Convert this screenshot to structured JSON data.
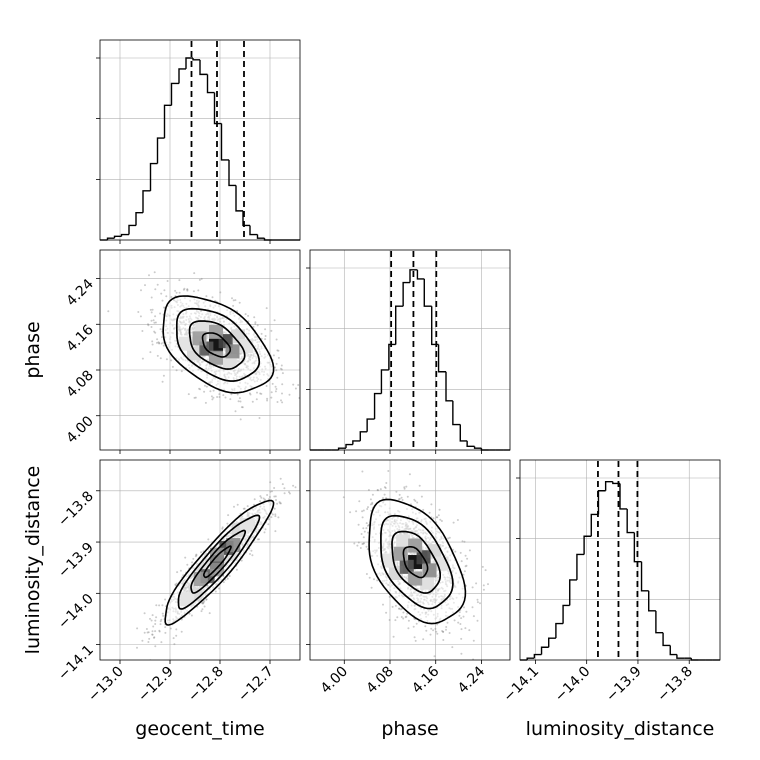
{
  "chart_data": {
    "type": "corner",
    "parameters": [
      "geocent_time",
      "phase",
      "luminosity_distance"
    ],
    "labels": {
      "geocent_time": "geocent_time",
      "phase": "phase",
      "luminosity_distance": "luminosity_distance"
    },
    "grid": true,
    "ranges": {
      "geocent_time": [
        -13.04,
        -12.64
      ],
      "phase": [
        3.94,
        4.29
      ],
      "luminosity_distance": [
        -14.13,
        -13.74
      ]
    },
    "ticks": {
      "geocent_time": [
        "−13.0",
        "−12.9",
        "−12.8",
        "−12.7"
      ],
      "phase": [
        "4.00",
        "4.08",
        "4.16",
        "4.24"
      ],
      "luminosity_distance": [
        "−14.1",
        "−14.0",
        "−13.9",
        "−13.8"
      ]
    },
    "tick_values": {
      "geocent_time": [
        -13.0,
        -12.9,
        -12.8,
        -12.7
      ],
      "phase": [
        4.0,
        4.08,
        4.16,
        4.24
      ],
      "luminosity_distance": [
        -14.1,
        -14.0,
        -13.9,
        -13.8
      ]
    },
    "histograms": {
      "geocent_time": {
        "quantiles": [
          -12.857,
          -12.806,
          -12.752
        ],
        "bin_edges": [
          -13.04,
          -13.025,
          -13.011,
          -12.997,
          -12.982,
          -12.968,
          -12.954,
          -12.939,
          -12.925,
          -12.911,
          -12.897,
          -12.882,
          -12.868,
          -12.854,
          -12.84,
          -12.825,
          -12.811,
          -12.797,
          -12.782,
          -12.768,
          -12.754,
          -12.74,
          -12.725,
          -12.711,
          -12.697,
          -12.682,
          -12.668,
          -12.654,
          -12.64
        ],
        "counts": [
          0.0,
          0.01,
          0.02,
          0.03,
          0.08,
          0.15,
          0.27,
          0.42,
          0.56,
          0.74,
          0.86,
          0.94,
          1.0,
          0.99,
          0.91,
          0.81,
          0.64,
          0.44,
          0.3,
          0.16,
          0.08,
          0.03,
          0.01,
          0.0,
          0.0,
          0.0,
          0.0,
          0.0
        ]
      },
      "phase": {
        "quantiles": [
          4.082,
          4.121,
          4.161
        ],
        "bin_edges": [
          3.94,
          3.953,
          3.965,
          3.978,
          3.99,
          4.003,
          4.015,
          4.028,
          4.04,
          4.053,
          4.065,
          4.078,
          4.09,
          4.103,
          4.115,
          4.128,
          4.14,
          4.153,
          4.165,
          4.178,
          4.19,
          4.203,
          4.215,
          4.228,
          4.24,
          4.253,
          4.265,
          4.278,
          4.29
        ],
        "counts": [
          0.0,
          0.0,
          0.0,
          0.0,
          0.01,
          0.03,
          0.05,
          0.1,
          0.17,
          0.31,
          0.44,
          0.58,
          0.79,
          0.92,
          0.99,
          0.94,
          0.79,
          0.58,
          0.43,
          0.27,
          0.14,
          0.05,
          0.02,
          0.01,
          0.0,
          0.0,
          0.0,
          0.0
        ]
      },
      "luminosity_distance": {
        "quantiles": [
          -13.978,
          -13.938,
          -13.901
        ],
        "bin_edges": [
          -14.13,
          -14.116,
          -14.102,
          -14.088,
          -14.074,
          -14.06,
          -14.046,
          -14.033,
          -14.019,
          -14.005,
          -13.991,
          -13.977,
          -13.963,
          -13.949,
          -13.935,
          -13.921,
          -13.907,
          -13.893,
          -13.879,
          -13.865,
          -13.851,
          -13.837,
          -13.824,
          -13.81,
          -13.796,
          -13.782,
          -13.768,
          -13.754,
          -13.74
        ],
        "counts": [
          0.0,
          0.01,
          0.03,
          0.07,
          0.12,
          0.2,
          0.3,
          0.44,
          0.58,
          0.68,
          0.8,
          0.93,
          0.98,
          0.97,
          0.83,
          0.7,
          0.54,
          0.38,
          0.27,
          0.15,
          0.08,
          0.03,
          0.01,
          0.01,
          0.0,
          0.0,
          0.0,
          0.0
        ]
      }
    },
    "pairs": [
      {
        "x": "geocent_time",
        "y": "phase",
        "mean": [
          -12.808,
          4.124
        ],
        "std": [
          0.055,
          0.042
        ],
        "correlation": -0.45,
        "samples": 1400
      },
      {
        "x": "geocent_time",
        "y": "luminosity_distance",
        "mean": [
          -12.806,
          -13.939
        ],
        "std": [
          0.054,
          0.06
        ],
        "correlation": 0.92,
        "samples": 1400
      },
      {
        "x": "phase",
        "y": "luminosity_distance",
        "mean": [
          4.124,
          -13.939
        ],
        "std": [
          0.042,
          0.06
        ],
        "correlation": -0.45,
        "samples": 1400
      }
    ],
    "contour_levels_sigma": [
      0.5,
      1.0,
      1.5,
      2.0
    ],
    "colors": {
      "line": "#000000",
      "scatter": "#8c8c8c",
      "grid": "#b0b0b0"
    }
  }
}
